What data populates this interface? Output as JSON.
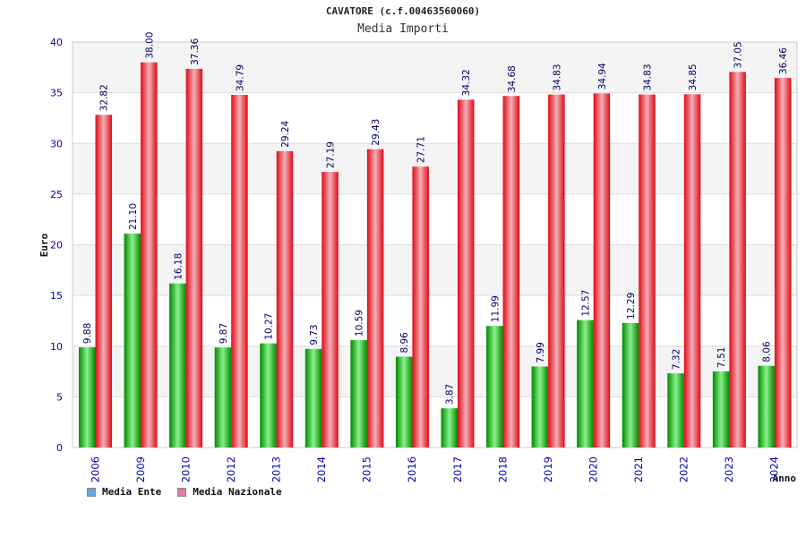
{
  "chart_data": {
    "type": "bar",
    "title": "CAVATORE (c.f.00463560060)",
    "subtitle": "Media Importi",
    "ylabel": "Euro",
    "xlabel": "Anno",
    "ylim": [
      0,
      40
    ],
    "yticks": [
      0,
      5,
      10,
      15,
      20,
      25,
      30,
      35,
      40
    ],
    "grid": true,
    "legend_position": "bottom-left",
    "categories": [
      "2006",
      "2009",
      "2010",
      "2012",
      "2013",
      "2014",
      "2015",
      "2016",
      "2017",
      "2018",
      "2019",
      "2020",
      "2021",
      "2022",
      "2023",
      "2024"
    ],
    "series": [
      {
        "name": "Media Ente",
        "color": "#00a800",
        "legend_color": "#66a3e0",
        "values": [
          9.88,
          21.1,
          16.18,
          9.87,
          10.27,
          9.73,
          10.59,
          8.96,
          3.87,
          11.99,
          7.99,
          12.57,
          12.29,
          7.32,
          7.51,
          8.06
        ],
        "labels": [
          "9.88",
          "21.10",
          "16.18",
          "9.87",
          "10.27",
          "9.73",
          "10.59",
          "8.96",
          "3.87",
          "11.99",
          "7.99",
          "12.57",
          "12.29",
          "7.32",
          "7.51",
          "8.06"
        ]
      },
      {
        "name": "Media Nazionale",
        "color": "#e8101e",
        "legend_color": "#e07aa8",
        "values": [
          32.82,
          38.0,
          37.36,
          34.79,
          29.24,
          27.19,
          29.43,
          27.71,
          34.32,
          34.68,
          34.83,
          34.94,
          34.83,
          34.85,
          37.05,
          36.46
        ],
        "labels": [
          "32.82",
          "38.00",
          "37.36",
          "34.79",
          "29.24",
          "27.19",
          "29.43",
          "27.71",
          "34.32",
          "34.68",
          "34.83",
          "34.94",
          "34.83",
          "34.85",
          "37.05",
          "36.46"
        ]
      }
    ],
    "colors": {
      "band_light": "#f4f4f4",
      "band_white": "#ffffff",
      "grid": "#dddddd",
      "tick_text": "#0000aa",
      "value_text": "#000066"
    }
  }
}
